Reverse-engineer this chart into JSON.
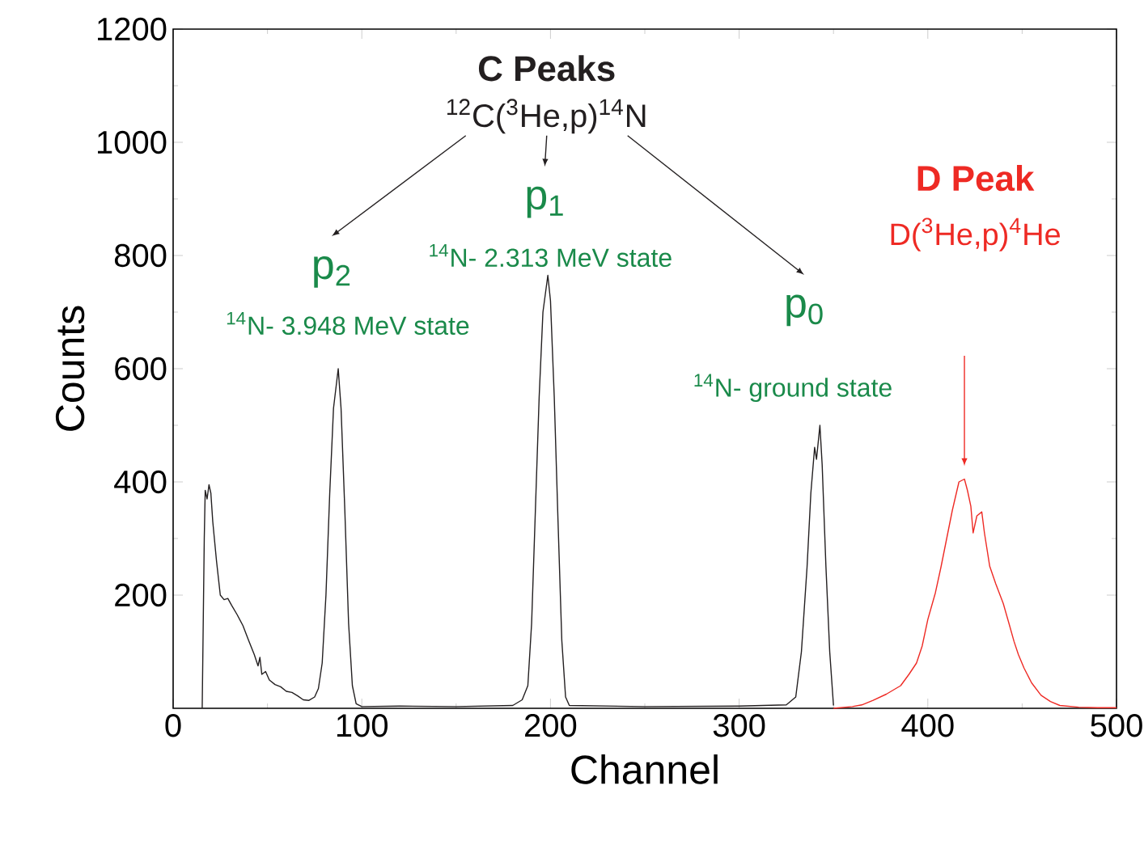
{
  "chart_data": {
    "type": "line",
    "xlabel": "Channel",
    "ylabel": "Counts",
    "xlim": [
      0,
      500
    ],
    "ylim": [
      0,
      1200
    ],
    "xticks": [
      0,
      100,
      200,
      300,
      400,
      500
    ],
    "yticks": [
      200,
      400,
      600,
      800,
      1000,
      1200
    ],
    "grid": false,
    "marker": "none",
    "line_style": "solid",
    "series": [
      {
        "color": "#231f20",
        "x": [
          15.4,
          16.5,
          17,
          18,
          19,
          20,
          21,
          23,
          25,
          27,
          29,
          31,
          34,
          37,
          40,
          43,
          45,
          46,
          47,
          49,
          51,
          54,
          57,
          60,
          63,
          66,
          69,
          72,
          75,
          77,
          79,
          81,
          83,
          85,
          87.5,
          89,
          91,
          93,
          95,
          97,
          100,
          120,
          150,
          180,
          185,
          188,
          190,
          192,
          194,
          196,
          198.6,
          200,
          202,
          204,
          206,
          208,
          210,
          250,
          300,
          325,
          330,
          333,
          336,
          338,
          340,
          341,
          342.8,
          344,
          346,
          348,
          350
        ],
        "values": [
          0,
          300,
          385,
          370,
          395,
          380,
          330,
          260,
          200,
          192,
          194,
          182,
          165,
          146,
          120,
          95,
          75,
          90,
          60,
          65,
          50,
          42,
          38,
          30,
          28,
          22,
          15,
          14,
          20,
          35,
          80,
          200,
          380,
          530,
          600,
          530,
          350,
          150,
          40,
          8,
          3,
          4,
          3,
          5,
          15,
          40,
          150,
          350,
          550,
          700,
          765,
          720,
          550,
          330,
          120,
          20,
          5,
          3,
          4,
          6,
          20,
          100,
          250,
          380,
          461,
          440,
          500,
          430,
          250,
          100,
          5
        ]
      },
      {
        "color": "#ee2a24",
        "x": [
          350,
          360,
          365,
          371,
          378,
          385.6,
          390,
          394,
          397,
          400,
          404,
          407,
          410,
          413,
          416.5,
          419.4,
          421,
          422.8,
          424,
          426,
          428.6,
          430,
          432.8,
          436,
          440,
          443,
          445.7,
          448,
          451,
          455,
          460,
          465,
          470,
          480,
          490,
          500
        ],
        "values": [
          0,
          3,
          6,
          14,
          25,
          40,
          60,
          80,
          110,
          157,
          204,
          250,
          300,
          350,
          400,
          405,
          385,
          357,
          310,
          340,
          347,
          310,
          251,
          220,
          185,
          150,
          118,
          95,
          71,
          45,
          23,
          12,
          5,
          2,
          1,
          1
        ]
      }
    ],
    "annotations": [
      "C Peaks",
      "$^{12}$C($^{3}$He,p)$^{14}$N",
      "p$_{2}$",
      "$^{14}$N- 3.948 MeV state",
      "p$_{1}$",
      "$^{14}$N- 2.313 MeV state",
      "p$_{0}$",
      "$^{14}$N- ground state",
      "D Peak",
      "D($^{3}$He,p)$^{4}$He"
    ]
  }
}
